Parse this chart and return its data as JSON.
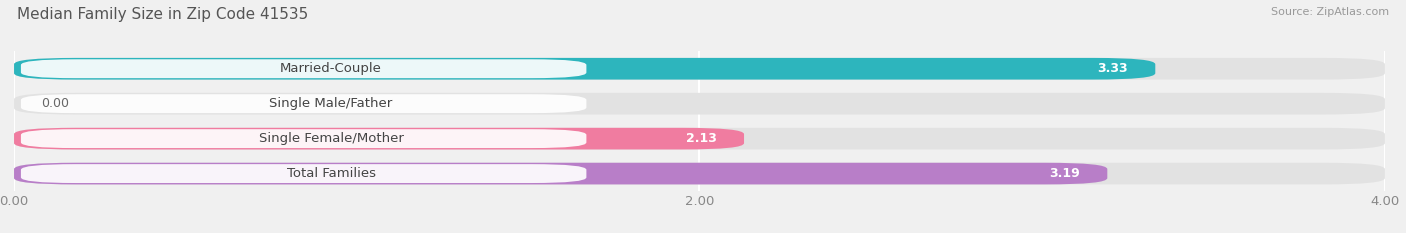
{
  "title": "Median Family Size in Zip Code 41535",
  "source": "Source: ZipAtlas.com",
  "categories": [
    "Married-Couple",
    "Single Male/Father",
    "Single Female/Mother",
    "Total Families"
  ],
  "values": [
    3.33,
    0.0,
    2.13,
    3.19
  ],
  "bar_colors": [
    "#2db5bd",
    "#aab4e0",
    "#f07ca0",
    "#b87ec8"
  ],
  "xlim": [
    0,
    4.0
  ],
  "xticks": [
    0.0,
    2.0,
    4.0
  ],
  "xtick_labels": [
    "0.00",
    "2.00",
    "4.00"
  ],
  "background_color": "#f0f0f0",
  "bar_bg_color": "#e2e2e2",
  "label_bg_color": "#ffffff",
  "label_fontsize": 9.5,
  "value_fontsize": 9,
  "title_fontsize": 11,
  "source_fontsize": 8,
  "bar_height": 0.62,
  "bar_gap": 0.38
}
